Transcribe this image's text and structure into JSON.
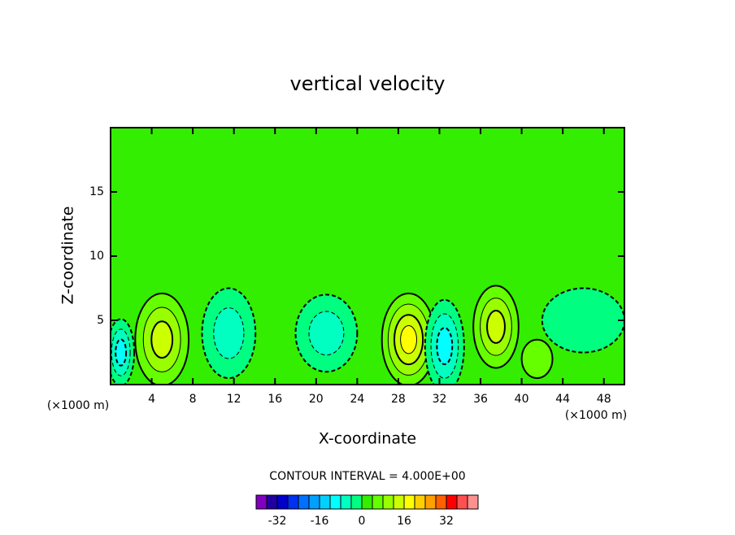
{
  "chart_data": {
    "type": "contour",
    "title": "vertical velocity",
    "x_label": "X-coordinate",
    "y_label": "Z-coordinate",
    "x_unit_label": "(×1000 m)",
    "y_unit_label": "(×1000 m)",
    "xlim": [
      0,
      50
    ],
    "ylim": [
      0,
      20
    ],
    "xticks": [
      4,
      8,
      12,
      16,
      20,
      24,
      28,
      32,
      36,
      40,
      44,
      48
    ],
    "yticks": [
      5,
      10,
      15
    ],
    "background_value": 2,
    "features": [
      {
        "x": 5,
        "z": 3.5,
        "value": 14,
        "half_width": 2.6,
        "half_height": 3.6
      },
      {
        "x": 29,
        "z": 3.5,
        "value": 18,
        "half_width": 2.6,
        "half_height": 3.6
      },
      {
        "x": 37.5,
        "z": 4.5,
        "value": 16,
        "half_width": 2.2,
        "half_height": 3.2
      },
      {
        "x": 1,
        "z": 2.5,
        "value": -12,
        "half_width": 1.3,
        "half_height": 2.6
      },
      {
        "x": 11.5,
        "z": 4,
        "value": -8,
        "half_width": 2.6,
        "half_height": 3.5
      },
      {
        "x": 21,
        "z": 4,
        "value": -8,
        "half_width": 3,
        "half_height": 3
      },
      {
        "x": 32.5,
        "z": 3,
        "value": -12,
        "half_width": 1.9,
        "half_height": 3.6
      },
      {
        "x": 41.5,
        "z": 2,
        "value": 6,
        "half_width": 1.5,
        "half_height": 1.5
      },
      {
        "x": 46,
        "z": 5,
        "value": -4,
        "half_width": 4,
        "half_height": 2.5
      }
    ],
    "contour_interval_label": "CONTOUR INTERVAL = 4.000E+00",
    "colorbar": {
      "lim": [
        -40,
        44
      ],
      "ticks": [
        -32,
        -16,
        0,
        16,
        32
      ],
      "colors": [
        "#8000c0",
        "#2000a0",
        "#0000c8",
        "#0030f0",
        "#0070ff",
        "#00a0ff",
        "#00d0ff",
        "#00ffff",
        "#00ffc0",
        "#00ff80",
        "#33ee00",
        "#66ff00",
        "#99ff00",
        "#ccff00",
        "#ffff00",
        "#ffd000",
        "#ffa000",
        "#ff6000",
        "#ff0000",
        "#ff5050",
        "#ff9090"
      ]
    }
  }
}
